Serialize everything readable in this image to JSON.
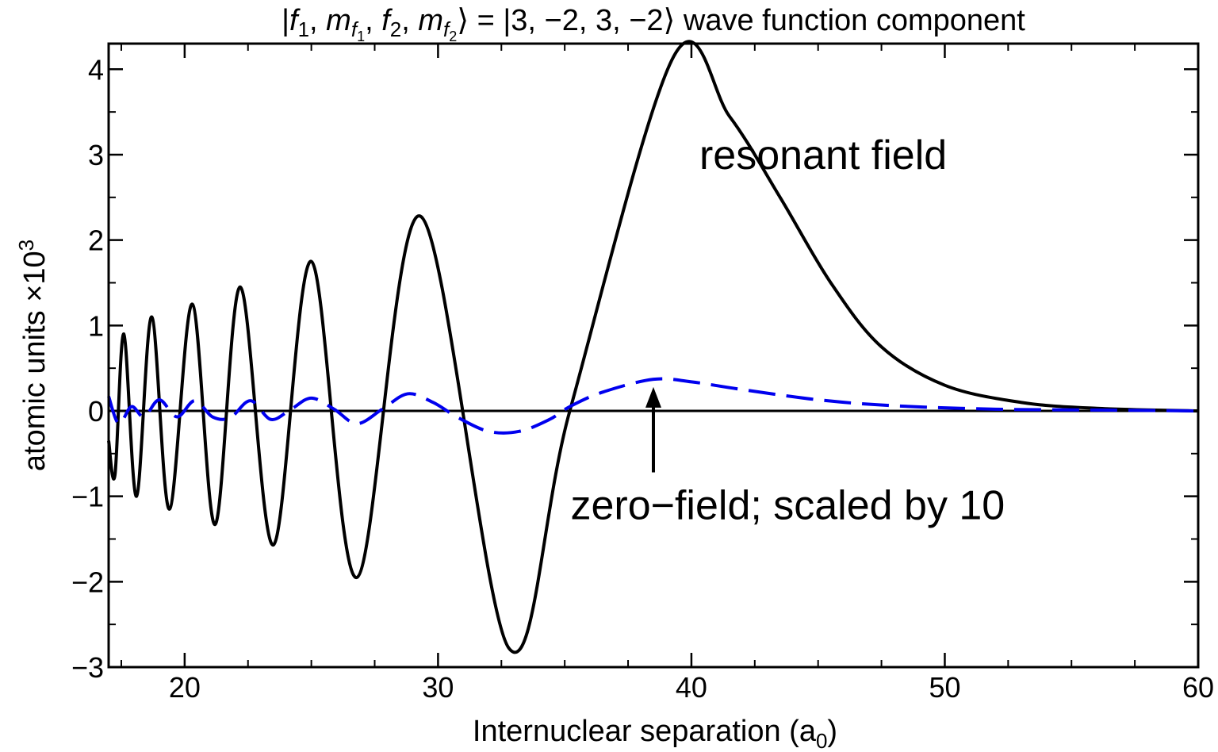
{
  "chart_data": {
    "type": "line",
    "title_parts": [
      "|",
      "f",
      "1",
      ", ",
      "m",
      "f",
      "1",
      ", ",
      "f",
      "2",
      ", ",
      "m",
      "f",
      "2",
      "⟩ = |3, −2, 3, −2⟩ wave function component"
    ],
    "xlabel_main": "Internuclear separation (a",
    "xlabel_sub": "0",
    "xlabel_end": ")",
    "ylabel_main": "atomic units ×10",
    "ylabel_sup": "3",
    "xlim": [
      17,
      60
    ],
    "ylim": [
      -3,
      4.3
    ],
    "xticks": [
      20,
      30,
      40,
      50,
      60
    ],
    "xtick_labels": [
      "20",
      "30",
      "40",
      "50",
      "60"
    ],
    "yticks": [
      -3,
      -2,
      -1,
      0,
      1,
      2,
      3,
      4
    ],
    "ytick_labels": [
      "−3",
      "−2",
      "−1",
      "0",
      "1",
      "2",
      "3",
      "4"
    ],
    "x_minor_step": 2.5,
    "y_minor_step": 0.5,
    "series": [
      {
        "name": "resonant field",
        "color": "#000000",
        "style": "solid",
        "points": [
          [
            17.0,
            -0.35
          ],
          [
            17.25,
            -0.75
          ],
          [
            17.6,
            0.9
          ],
          [
            18.1,
            -1.0
          ],
          [
            18.7,
            1.1
          ],
          [
            19.4,
            -1.15
          ],
          [
            20.3,
            1.25
          ],
          [
            21.2,
            -1.33
          ],
          [
            22.2,
            1.45
          ],
          [
            23.5,
            -1.57
          ],
          [
            25.0,
            1.75
          ],
          [
            26.8,
            -1.95
          ],
          [
            29.3,
            2.28
          ],
          [
            32.8,
            -2.78
          ],
          [
            35.2,
            0.0
          ],
          [
            39.3,
            4.15
          ],
          [
            41.5,
            3.45
          ],
          [
            43.5,
            2.5
          ],
          [
            45.5,
            1.5
          ],
          [
            47.5,
            0.75
          ],
          [
            50.0,
            0.3
          ],
          [
            53.0,
            0.1
          ],
          [
            56.0,
            0.03
          ],
          [
            60.0,
            0.0
          ]
        ]
      },
      {
        "name": "zero-field; scaled by 10",
        "color": "#0000ee",
        "style": "dashed",
        "points": [
          [
            17.0,
            0.17
          ],
          [
            17.4,
            -0.15
          ],
          [
            17.9,
            0.05
          ],
          [
            18.4,
            -0.07
          ],
          [
            19.0,
            0.13
          ],
          [
            19.7,
            -0.07
          ],
          [
            20.4,
            0.12
          ],
          [
            21.1,
            -0.07
          ],
          [
            21.8,
            -0.08
          ],
          [
            22.6,
            0.12
          ],
          [
            23.4,
            -0.1
          ],
          [
            24.2,
            0.02
          ],
          [
            25.0,
            0.15
          ],
          [
            25.9,
            0.02
          ],
          [
            26.8,
            -0.15
          ],
          [
            27.8,
            0.02
          ],
          [
            28.8,
            0.2
          ],
          [
            29.8,
            0.1
          ],
          [
            30.8,
            -0.08
          ],
          [
            32.0,
            -0.24
          ],
          [
            33.2,
            -0.24
          ],
          [
            34.4,
            -0.1
          ],
          [
            35.2,
            0.05
          ],
          [
            36.5,
            0.22
          ],
          [
            38.5,
            0.37
          ],
          [
            40.0,
            0.34
          ],
          [
            42.0,
            0.25
          ],
          [
            45.0,
            0.13
          ],
          [
            48.0,
            0.06
          ],
          [
            52.0,
            0.02
          ],
          [
            56.0,
            0.01
          ],
          [
            60.0,
            0.0
          ]
        ]
      }
    ],
    "annotations": [
      {
        "text": "resonant field",
        "x": 45.2,
        "y": 3.0
      },
      {
        "text": "zero−field; scaled by 10",
        "x": 43.8,
        "y": -1.1,
        "arrow_to": [
          38.5,
          0.28
        ],
        "arrow_from": [
          38.5,
          -0.72
        ]
      }
    ]
  }
}
